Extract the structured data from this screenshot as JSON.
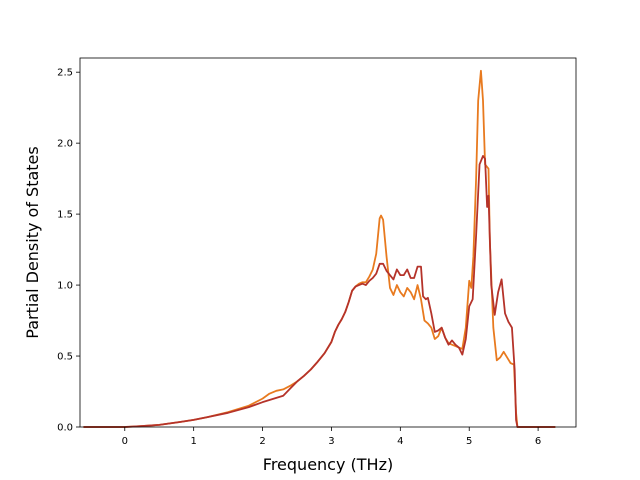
{
  "chart_data": {
    "type": "line",
    "title": "",
    "xlabel": "Frequency (THz)",
    "ylabel": "Partial Density of States",
    "xlim": [
      -0.65,
      6.55
    ],
    "ylim": [
      0,
      2.6
    ],
    "xticks": [
      0,
      1,
      2,
      3,
      4,
      5,
      6
    ],
    "yticks": [
      0.0,
      0.5,
      1.0,
      1.5,
      2.0,
      2.5
    ],
    "xtick_labels": [
      "0",
      "1",
      "2",
      "3",
      "4",
      "5",
      "6"
    ],
    "ytick_labels": [
      "0.0",
      "0.5",
      "1.0",
      "1.5",
      "2.0",
      "2.5"
    ],
    "grid": false,
    "legend": false,
    "series": [
      {
        "color": "#e87a1f",
        "points": [
          [
            -0.6,
            0.0
          ],
          [
            0.0,
            0.0
          ],
          [
            0.2,
            0.005
          ],
          [
            0.5,
            0.015
          ],
          [
            0.8,
            0.035
          ],
          [
            1.0,
            0.05
          ],
          [
            1.2,
            0.07
          ],
          [
            1.5,
            0.105
          ],
          [
            1.8,
            0.15
          ],
          [
            2.0,
            0.2
          ],
          [
            2.1,
            0.235
          ],
          [
            2.2,
            0.255
          ],
          [
            2.3,
            0.265
          ],
          [
            2.4,
            0.29
          ],
          [
            2.5,
            0.32
          ],
          [
            2.6,
            0.36
          ],
          [
            2.7,
            0.405
          ],
          [
            2.8,
            0.46
          ],
          [
            2.9,
            0.52
          ],
          [
            3.0,
            0.6
          ],
          [
            3.05,
            0.67
          ],
          [
            3.1,
            0.72
          ],
          [
            3.15,
            0.76
          ],
          [
            3.2,
            0.81
          ],
          [
            3.25,
            0.88
          ],
          [
            3.3,
            0.96
          ],
          [
            3.35,
            0.99
          ],
          [
            3.4,
            1.01
          ],
          [
            3.45,
            1.02
          ],
          [
            3.5,
            1.02
          ],
          [
            3.55,
            1.06
          ],
          [
            3.6,
            1.11
          ],
          [
            3.65,
            1.22
          ],
          [
            3.7,
            1.47
          ],
          [
            3.72,
            1.49
          ],
          [
            3.75,
            1.46
          ],
          [
            3.8,
            1.2
          ],
          [
            3.85,
            0.98
          ],
          [
            3.9,
            0.93
          ],
          [
            3.95,
            1.0
          ],
          [
            4.0,
            0.95
          ],
          [
            4.05,
            0.92
          ],
          [
            4.1,
            0.98
          ],
          [
            4.15,
            0.95
          ],
          [
            4.2,
            0.9
          ],
          [
            4.25,
            1.0
          ],
          [
            4.3,
            0.9
          ],
          [
            4.35,
            0.75
          ],
          [
            4.4,
            0.73
          ],
          [
            4.45,
            0.7
          ],
          [
            4.5,
            0.62
          ],
          [
            4.55,
            0.64
          ],
          [
            4.6,
            0.7
          ],
          [
            4.65,
            0.63
          ],
          [
            4.7,
            0.59
          ],
          [
            4.75,
            0.58
          ],
          [
            4.8,
            0.57
          ],
          [
            4.85,
            0.56
          ],
          [
            4.9,
            0.55
          ],
          [
            4.95,
            0.7
          ],
          [
            5.0,
            1.03
          ],
          [
            5.03,
            0.98
          ],
          [
            5.06,
            1.2
          ],
          [
            5.1,
            1.75
          ],
          [
            5.13,
            2.3
          ],
          [
            5.17,
            2.51
          ],
          [
            5.2,
            2.3
          ],
          [
            5.23,
            1.85
          ],
          [
            5.28,
            1.82
          ],
          [
            5.3,
            1.3
          ],
          [
            5.35,
            0.7
          ],
          [
            5.4,
            0.47
          ],
          [
            5.45,
            0.49
          ],
          [
            5.5,
            0.53
          ],
          [
            5.55,
            0.49
          ],
          [
            5.6,
            0.45
          ],
          [
            5.65,
            0.44
          ],
          [
            5.68,
            0.1
          ],
          [
            5.7,
            0.0
          ],
          [
            6.25,
            0.0
          ]
        ]
      },
      {
        "color": "#b5332a",
        "points": [
          [
            -0.6,
            0.0
          ],
          [
            0.0,
            0.0
          ],
          [
            0.2,
            0.005
          ],
          [
            0.5,
            0.015
          ],
          [
            0.8,
            0.035
          ],
          [
            1.0,
            0.05
          ],
          [
            1.2,
            0.07
          ],
          [
            1.5,
            0.1
          ],
          [
            1.8,
            0.14
          ],
          [
            2.0,
            0.175
          ],
          [
            2.1,
            0.19
          ],
          [
            2.2,
            0.205
          ],
          [
            2.3,
            0.22
          ],
          [
            2.4,
            0.27
          ],
          [
            2.5,
            0.32
          ],
          [
            2.6,
            0.36
          ],
          [
            2.7,
            0.405
          ],
          [
            2.8,
            0.46
          ],
          [
            2.9,
            0.52
          ],
          [
            3.0,
            0.6
          ],
          [
            3.05,
            0.67
          ],
          [
            3.1,
            0.72
          ],
          [
            3.15,
            0.76
          ],
          [
            3.2,
            0.81
          ],
          [
            3.25,
            0.88
          ],
          [
            3.3,
            0.96
          ],
          [
            3.35,
            0.99
          ],
          [
            3.4,
            1.0
          ],
          [
            3.45,
            1.01
          ],
          [
            3.5,
            1.0
          ],
          [
            3.55,
            1.03
          ],
          [
            3.6,
            1.05
          ],
          [
            3.65,
            1.08
          ],
          [
            3.7,
            1.15
          ],
          [
            3.75,
            1.15
          ],
          [
            3.8,
            1.1
          ],
          [
            3.85,
            1.07
          ],
          [
            3.9,
            1.04
          ],
          [
            3.95,
            1.11
          ],
          [
            4.0,
            1.07
          ],
          [
            4.05,
            1.07
          ],
          [
            4.1,
            1.11
          ],
          [
            4.15,
            1.05
          ],
          [
            4.2,
            1.05
          ],
          [
            4.25,
            1.13
          ],
          [
            4.3,
            1.13
          ],
          [
            4.33,
            0.92
          ],
          [
            4.37,
            0.9
          ],
          [
            4.4,
            0.91
          ],
          [
            4.45,
            0.8
          ],
          [
            4.5,
            0.67
          ],
          [
            4.55,
            0.68
          ],
          [
            4.6,
            0.7
          ],
          [
            4.65,
            0.63
          ],
          [
            4.7,
            0.58
          ],
          [
            4.75,
            0.61
          ],
          [
            4.8,
            0.58
          ],
          [
            4.85,
            0.56
          ],
          [
            4.9,
            0.51
          ],
          [
            4.95,
            0.62
          ],
          [
            5.0,
            0.85
          ],
          [
            5.05,
            0.9
          ],
          [
            5.1,
            1.35
          ],
          [
            5.15,
            1.85
          ],
          [
            5.2,
            1.91
          ],
          [
            5.23,
            1.89
          ],
          [
            5.26,
            1.55
          ],
          [
            5.28,
            1.63
          ],
          [
            5.32,
            1.0
          ],
          [
            5.37,
            0.79
          ],
          [
            5.42,
            0.95
          ],
          [
            5.47,
            1.04
          ],
          [
            5.52,
            0.8
          ],
          [
            5.57,
            0.74
          ],
          [
            5.62,
            0.7
          ],
          [
            5.66,
            0.4
          ],
          [
            5.68,
            0.05
          ],
          [
            5.7,
            0.0
          ],
          [
            6.25,
            0.0
          ]
        ]
      }
    ]
  }
}
